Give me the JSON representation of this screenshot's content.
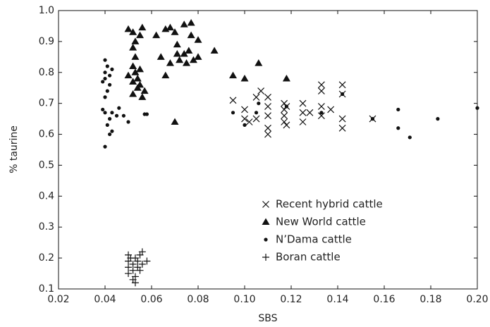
{
  "chart_data": {
    "type": "scatter",
    "xlabel": "SBS",
    "ylabel": "% taurine",
    "xlim": [
      0.02,
      0.2
    ],
    "ylim": [
      0.1,
      1.0
    ],
    "xticks": [
      0.02,
      0.04,
      0.06,
      0.08,
      {
        "value": 0.1,
        "label": "0.10"
      },
      0.12,
      0.14,
      0.16,
      0.18,
      {
        "value": 0.2,
        "label": "0.20"
      }
    ],
    "yticks": [
      0.1,
      0.2,
      0.3,
      0.4,
      0.5,
      0.6,
      0.7,
      0.8,
      0.9,
      {
        "value": 1.0,
        "label": "1.0"
      }
    ],
    "legend": "lower right",
    "series": [
      {
        "name": "Recent hybrid cattle",
        "color": "#111",
        "marker": "x",
        "x": [
          0.095,
          0.1,
          0.1,
          0.102,
          0.105,
          0.105,
          0.107,
          0.11,
          0.11,
          0.11,
          0.11,
          0.11,
          0.117,
          0.117,
          0.117,
          0.117,
          0.118,
          0.118,
          0.125,
          0.125,
          0.125,
          0.128,
          0.133,
          0.133,
          0.133,
          0.133,
          0.137,
          0.142,
          0.142,
          0.142,
          0.142,
          0.155
        ],
        "values": [
          0.71,
          0.68,
          0.65,
          0.64,
          0.72,
          0.65,
          0.74,
          0.72,
          0.69,
          0.66,
          0.62,
          0.6,
          0.7,
          0.68,
          0.66,
          0.64,
          0.63,
          0.69,
          0.7,
          0.67,
          0.64,
          0.67,
          0.76,
          0.74,
          0.69,
          0.66,
          0.68,
          0.76,
          0.73,
          0.65,
          0.62,
          0.65
        ]
      },
      {
        "name": "New World cattle",
        "color": "#111",
        "marker": "triangle",
        "x": [
          0.05,
          0.052,
          0.053,
          0.055,
          0.056,
          0.052,
          0.053,
          0.052,
          0.053,
          0.054,
          0.052,
          0.055,
          0.056,
          0.052,
          0.054,
          0.057,
          0.055,
          0.05,
          0.062,
          0.064,
          0.066,
          0.068,
          0.066,
          0.068,
          0.07,
          0.071,
          0.071,
          0.072,
          0.074,
          0.074,
          0.075,
          0.076,
          0.077,
          0.077,
          0.078,
          0.08,
          0.08,
          0.087,
          0.07,
          0.095,
          0.1,
          0.106,
          0.118
        ],
        "values": [
          0.94,
          0.93,
          0.9,
          0.92,
          0.945,
          0.88,
          0.85,
          0.82,
          0.8,
          0.78,
          0.77,
          0.76,
          0.72,
          0.73,
          0.75,
          0.74,
          0.81,
          0.79,
          0.92,
          0.85,
          0.94,
          0.945,
          0.79,
          0.83,
          0.93,
          0.89,
          0.86,
          0.84,
          0.955,
          0.86,
          0.83,
          0.87,
          0.96,
          0.92,
          0.84,
          0.905,
          0.85,
          0.87,
          0.64,
          0.79,
          0.78,
          0.83,
          0.78
        ]
      },
      {
        "name": "N’Dama cattle",
        "color": "#111",
        "marker": "circle",
        "x": [
          0.039,
          0.04,
          0.04,
          0.041,
          0.04,
          0.042,
          0.042,
          0.043,
          0.041,
          0.04,
          0.039,
          0.04,
          0.041,
          0.042,
          0.042,
          0.043,
          0.043,
          0.045,
          0.046,
          0.04,
          0.048,
          0.05,
          0.057,
          0.058,
          0.1,
          0.095,
          0.105,
          0.106,
          0.118,
          0.133,
          0.142,
          0.155,
          0.166,
          0.166,
          0.171,
          0.183,
          0.2
        ],
        "values": [
          0.77,
          0.78,
          0.8,
          0.82,
          0.84,
          0.79,
          0.76,
          0.81,
          0.74,
          0.72,
          0.68,
          0.67,
          0.63,
          0.65,
          0.6,
          0.61,
          0.67,
          0.66,
          0.685,
          0.56,
          0.66,
          0.64,
          0.665,
          0.665,
          0.63,
          0.67,
          0.67,
          0.7,
          0.69,
          0.67,
          0.73,
          0.65,
          0.68,
          0.62,
          0.59,
          0.65,
          0.685
        ]
      },
      {
        "name": "Boran cattle",
        "color": "#111",
        "marker": "plus",
        "x": [
          0.05,
          0.05,
          0.05,
          0.05,
          0.051,
          0.052,
          0.052,
          0.052,
          0.053,
          0.053,
          0.054,
          0.054,
          0.055,
          0.055,
          0.056,
          0.056,
          0.058,
          0.053
        ],
        "values": [
          0.21,
          0.19,
          0.17,
          0.15,
          0.2,
          0.18,
          0.16,
          0.13,
          0.12,
          0.2,
          0.19,
          0.17,
          0.21,
          0.16,
          0.22,
          0.18,
          0.19,
          0.14
        ]
      }
    ]
  }
}
